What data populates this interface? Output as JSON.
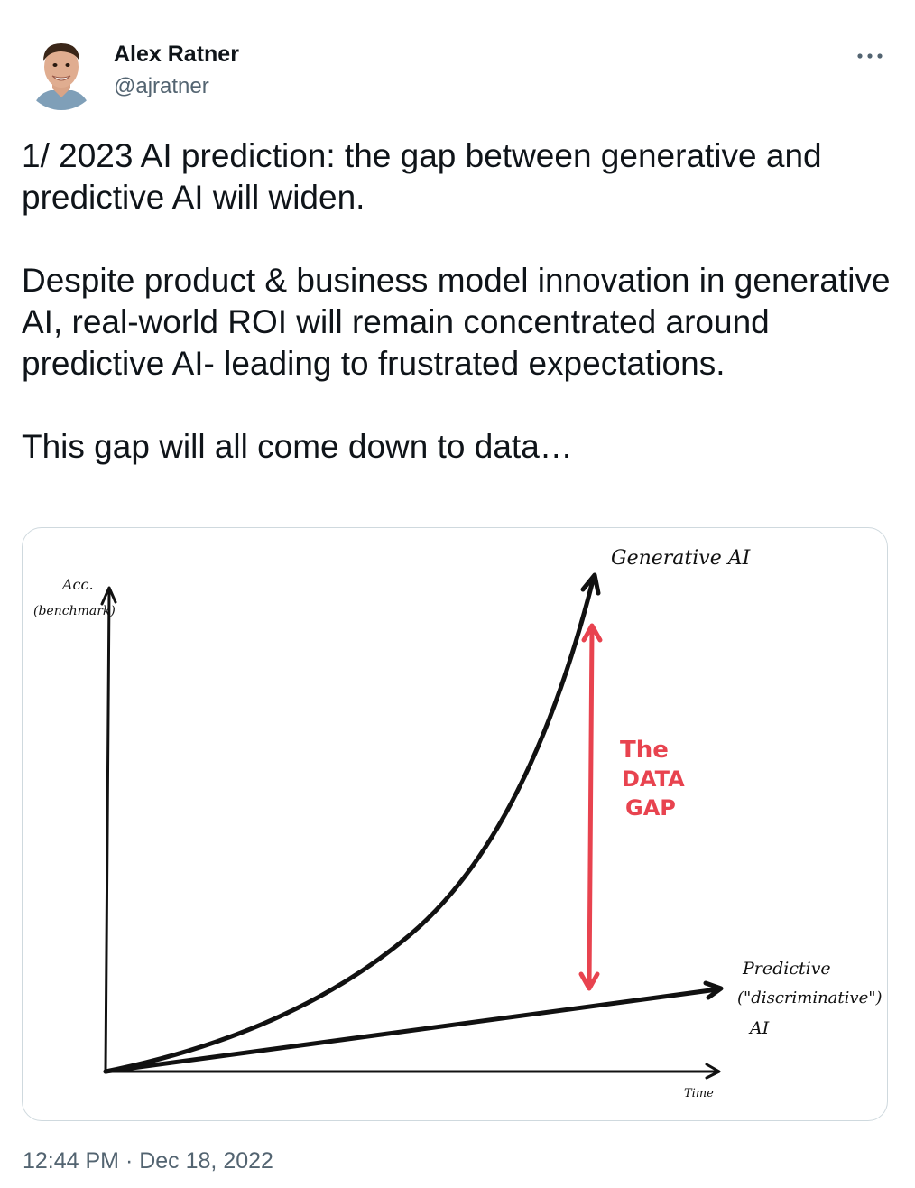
{
  "author": {
    "display_name": "Alex Ratner",
    "handle": "@ajratner",
    "avatar_icon": "user-avatar-photo"
  },
  "tweet": {
    "paragraphs": [
      "1/ 2023 AI prediction: the gap between generative and predictive AI will widen.",
      "Despite product & business model innovation in generative AI, real-world ROI will remain concentrated around predictive AI- leading to frustrated expectations.",
      "This gap will all come down to data…"
    ],
    "timestamp": "12:44 PM · Dec 18, 2022"
  },
  "menu": {
    "icon": "more-horizontal-icon"
  },
  "sketch": {
    "y_axis_label_line1": "Acc.",
    "y_axis_label_line2": "(benchmark)",
    "x_axis_label": "Time",
    "generative_label": "Generative AI",
    "predictive_label_line1": "Predictive",
    "predictive_label_line2": "(\"discriminative\")",
    "predictive_label_line3": "AI",
    "gap_label_line1": "The",
    "gap_label_line2": "DATA",
    "gap_label_line3": "GAP",
    "colors": {
      "ink": "#111111",
      "gap": "#e8434f"
    }
  }
}
